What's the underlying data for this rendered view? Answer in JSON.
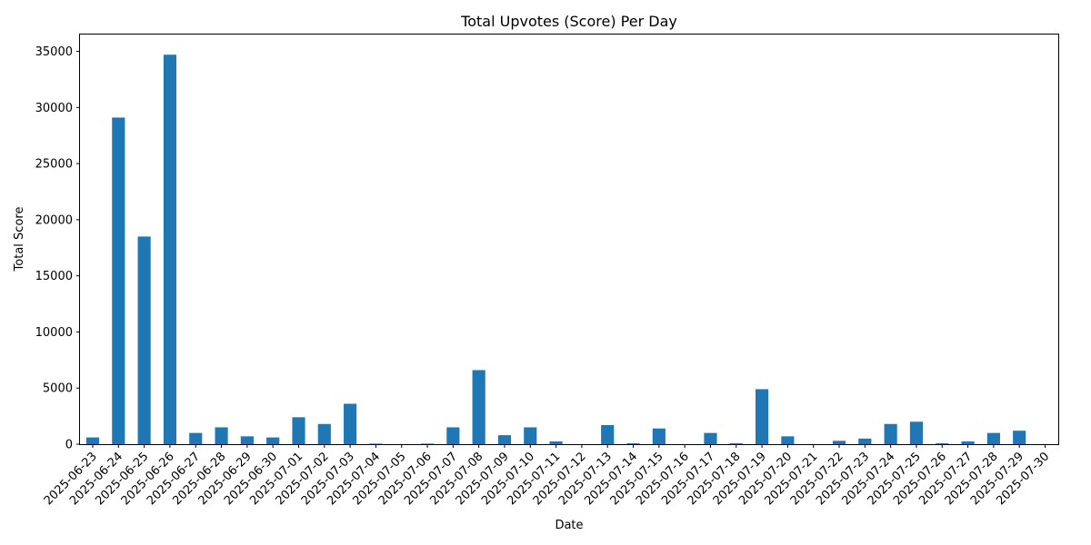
{
  "chart_data": {
    "type": "bar",
    "title": "Total Upvotes (Score) Per Day",
    "xlabel": "Date",
    "ylabel": "Total Score",
    "ylim": [
      0,
      36500
    ],
    "yticks": [
      0,
      5000,
      10000,
      15000,
      20000,
      25000,
      30000,
      35000
    ],
    "grid": false,
    "color": "#1f77b4",
    "categories": [
      "2025-06-23",
      "2025-06-24",
      "2025-06-25",
      "2025-06-26",
      "2025-06-27",
      "2025-06-28",
      "2025-06-29",
      "2025-06-30",
      "2025-07-01",
      "2025-07-02",
      "2025-07-03",
      "2025-07-04",
      "2025-07-05",
      "2025-07-06",
      "2025-07-07",
      "2025-07-08",
      "2025-07-09",
      "2025-07-10",
      "2025-07-11",
      "2025-07-12",
      "2025-07-13",
      "2025-07-14",
      "2025-07-15",
      "2025-07-16",
      "2025-07-17",
      "2025-07-18",
      "2025-07-19",
      "2025-07-20",
      "2025-07-21",
      "2025-07-22",
      "2025-07-23",
      "2025-07-24",
      "2025-07-25",
      "2025-07-26",
      "2025-07-27",
      "2025-07-28",
      "2025-07-29",
      "2025-07-30"
    ],
    "values": [
      600,
      29100,
      18500,
      34700,
      1000,
      1500,
      700,
      600,
      2400,
      1800,
      3600,
      50,
      0,
      50,
      1500,
      6600,
      800,
      1500,
      250,
      0,
      1700,
      80,
      1400,
      0,
      1000,
      80,
      4900,
      700,
      0,
      300,
      500,
      1800,
      2000,
      80,
      250,
      1000,
      1200,
      0
    ]
  }
}
